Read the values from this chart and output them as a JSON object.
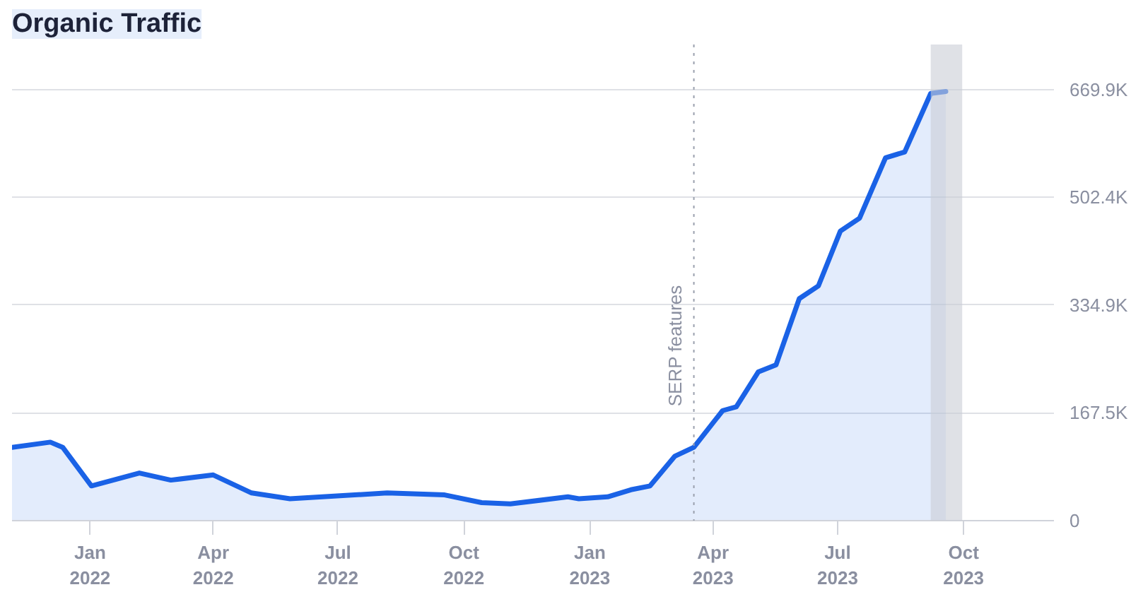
{
  "chart_data": {
    "type": "area",
    "title": "Organic Traffic",
    "x": [
      "2021-11-05",
      "2021-12-03",
      "2021-12-12",
      "2022-01-02",
      "2022-02-06",
      "2022-03-01",
      "2022-04-01",
      "2022-04-29",
      "2022-05-27",
      "2022-08-06",
      "2022-09-17",
      "2022-10-14",
      "2022-11-04",
      "2022-12-16",
      "2022-12-24",
      "2023-01-14",
      "2023-01-31",
      "2023-02-14",
      "2023-03-04",
      "2023-03-18",
      "2023-04-08",
      "2023-04-18",
      "2023-05-04",
      "2023-05-17",
      "2023-06-03",
      "2023-06-17",
      "2023-07-03",
      "2023-07-17",
      "2023-08-05",
      "2023-08-19",
      "2023-09-07",
      "2023-09-18"
    ],
    "series": [
      {
        "color": "#1a62e6",
        "values": [
          114000,
          122000,
          114000,
          54000,
          74000,
          63000,
          71000,
          43000,
          34000,
          43000,
          40000,
          28000,
          26000,
          37000,
          34000,
          37000,
          48000,
          54000,
          100000,
          114000,
          171000,
          177000,
          231000,
          242000,
          345000,
          365000,
          450000,
          470000,
          564000,
          573000,
          664000,
          667000
        ]
      }
    ],
    "xlim": [
      "2021-11-05",
      "2023-12-06"
    ],
    "xticks": [
      {
        "value": "2022-01-01",
        "label": "Jan\n2022"
      },
      {
        "value": "2022-04-01",
        "label": "Apr\n2022"
      },
      {
        "value": "2022-07-01",
        "label": "Jul\n2022"
      },
      {
        "value": "2022-10-01",
        "label": "Oct\n2022"
      },
      {
        "value": "2023-01-01",
        "label": "Jan\n2023"
      },
      {
        "value": "2023-04-01",
        "label": "Apr\n2023"
      },
      {
        "value": "2023-07-01",
        "label": "Jul\n2023"
      },
      {
        "value": "2023-10-01",
        "label": "Oct\n2023"
      }
    ],
    "ylim": [
      0,
      740000
    ],
    "yticks": [
      0,
      {
        "value": 167500,
        "label": "167.5K"
      },
      {
        "value": 334900,
        "label": "334.9K"
      },
      {
        "value": 502400,
        "label": "502.4K"
      },
      {
        "value": 669900,
        "label": "669.9K"
      }
    ],
    "ref_lines": [
      {
        "axis": "x",
        "value": "2023-03-18",
        "label": "SERP features",
        "color": "#9aa0ad",
        "line_style": "dotted"
      }
    ],
    "bands": [
      {
        "axis": "x",
        "from": "2023-09-07",
        "to": "2023-09-30",
        "color": "#c9cdd6"
      }
    ],
    "grid": "y"
  }
}
